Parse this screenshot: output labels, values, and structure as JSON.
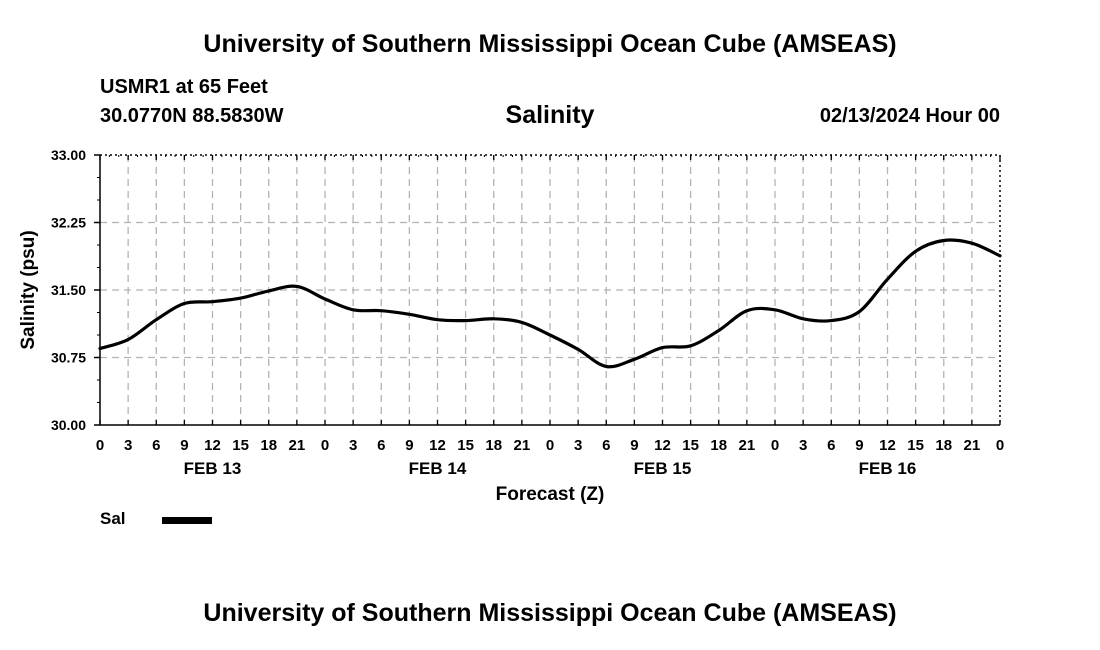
{
  "header": {
    "title": "University of Southern Mississippi Ocean Cube (AMSEAS)",
    "station": "USMR1 at 65 Feet",
    "coords": "30.0770N  88.5830W",
    "variable": "Salinity",
    "date": "02/13/2024 Hour 00"
  },
  "footer": {
    "title": "University of Southern Mississippi Ocean Cube (AMSEAS)"
  },
  "legend": {
    "label": "Sal",
    "color": "#000000"
  },
  "chart_data": {
    "type": "line",
    "title": "Salinity",
    "xlabel": "Forecast (Z)",
    "ylabel": "Salinity (psu)",
    "xlim": [
      0,
      96
    ],
    "ylim": [
      30.0,
      33.0
    ],
    "grid": true,
    "y_ticks": [
      {
        "value": 30.0,
        "label": "30.00"
      },
      {
        "value": 30.75,
        "label": "30.75"
      },
      {
        "value": 31.5,
        "label": "31.50"
      },
      {
        "value": 32.25,
        "label": "32.25"
      },
      {
        "value": 33.0,
        "label": "33.00"
      }
    ],
    "x_hour_labels": [
      "0",
      "3",
      "6",
      "9",
      "12",
      "15",
      "18",
      "21",
      "0",
      "3",
      "6",
      "9",
      "12",
      "15",
      "18",
      "21",
      "0",
      "3",
      "6",
      "9",
      "12",
      "15",
      "18",
      "21",
      "0",
      "3",
      "6",
      "9",
      "12",
      "15",
      "18",
      "21",
      "0"
    ],
    "day_labels": [
      {
        "hour": 12,
        "label": "FEB 13"
      },
      {
        "hour": 36,
        "label": "FEB 14"
      },
      {
        "hour": 60,
        "label": "FEB 15"
      },
      {
        "hour": 84,
        "label": "FEB 16"
      }
    ],
    "series": [
      {
        "name": "Sal",
        "x": [
          0,
          3,
          6,
          9,
          12,
          15,
          18,
          21,
          24,
          27,
          30,
          33,
          36,
          39,
          42,
          45,
          48,
          51,
          54,
          57,
          60,
          63,
          66,
          69,
          72,
          75,
          78,
          81,
          84,
          87,
          90,
          93,
          96
        ],
        "values": [
          30.85,
          30.95,
          31.17,
          31.35,
          31.37,
          31.41,
          31.49,
          31.54,
          31.4,
          31.28,
          31.27,
          31.23,
          31.17,
          31.16,
          31.18,
          31.14,
          31.0,
          30.84,
          30.65,
          30.73,
          30.86,
          30.88,
          31.05,
          31.27,
          31.28,
          31.18,
          31.16,
          31.26,
          31.62,
          31.93,
          32.05,
          32.02,
          31.88
        ]
      }
    ]
  }
}
